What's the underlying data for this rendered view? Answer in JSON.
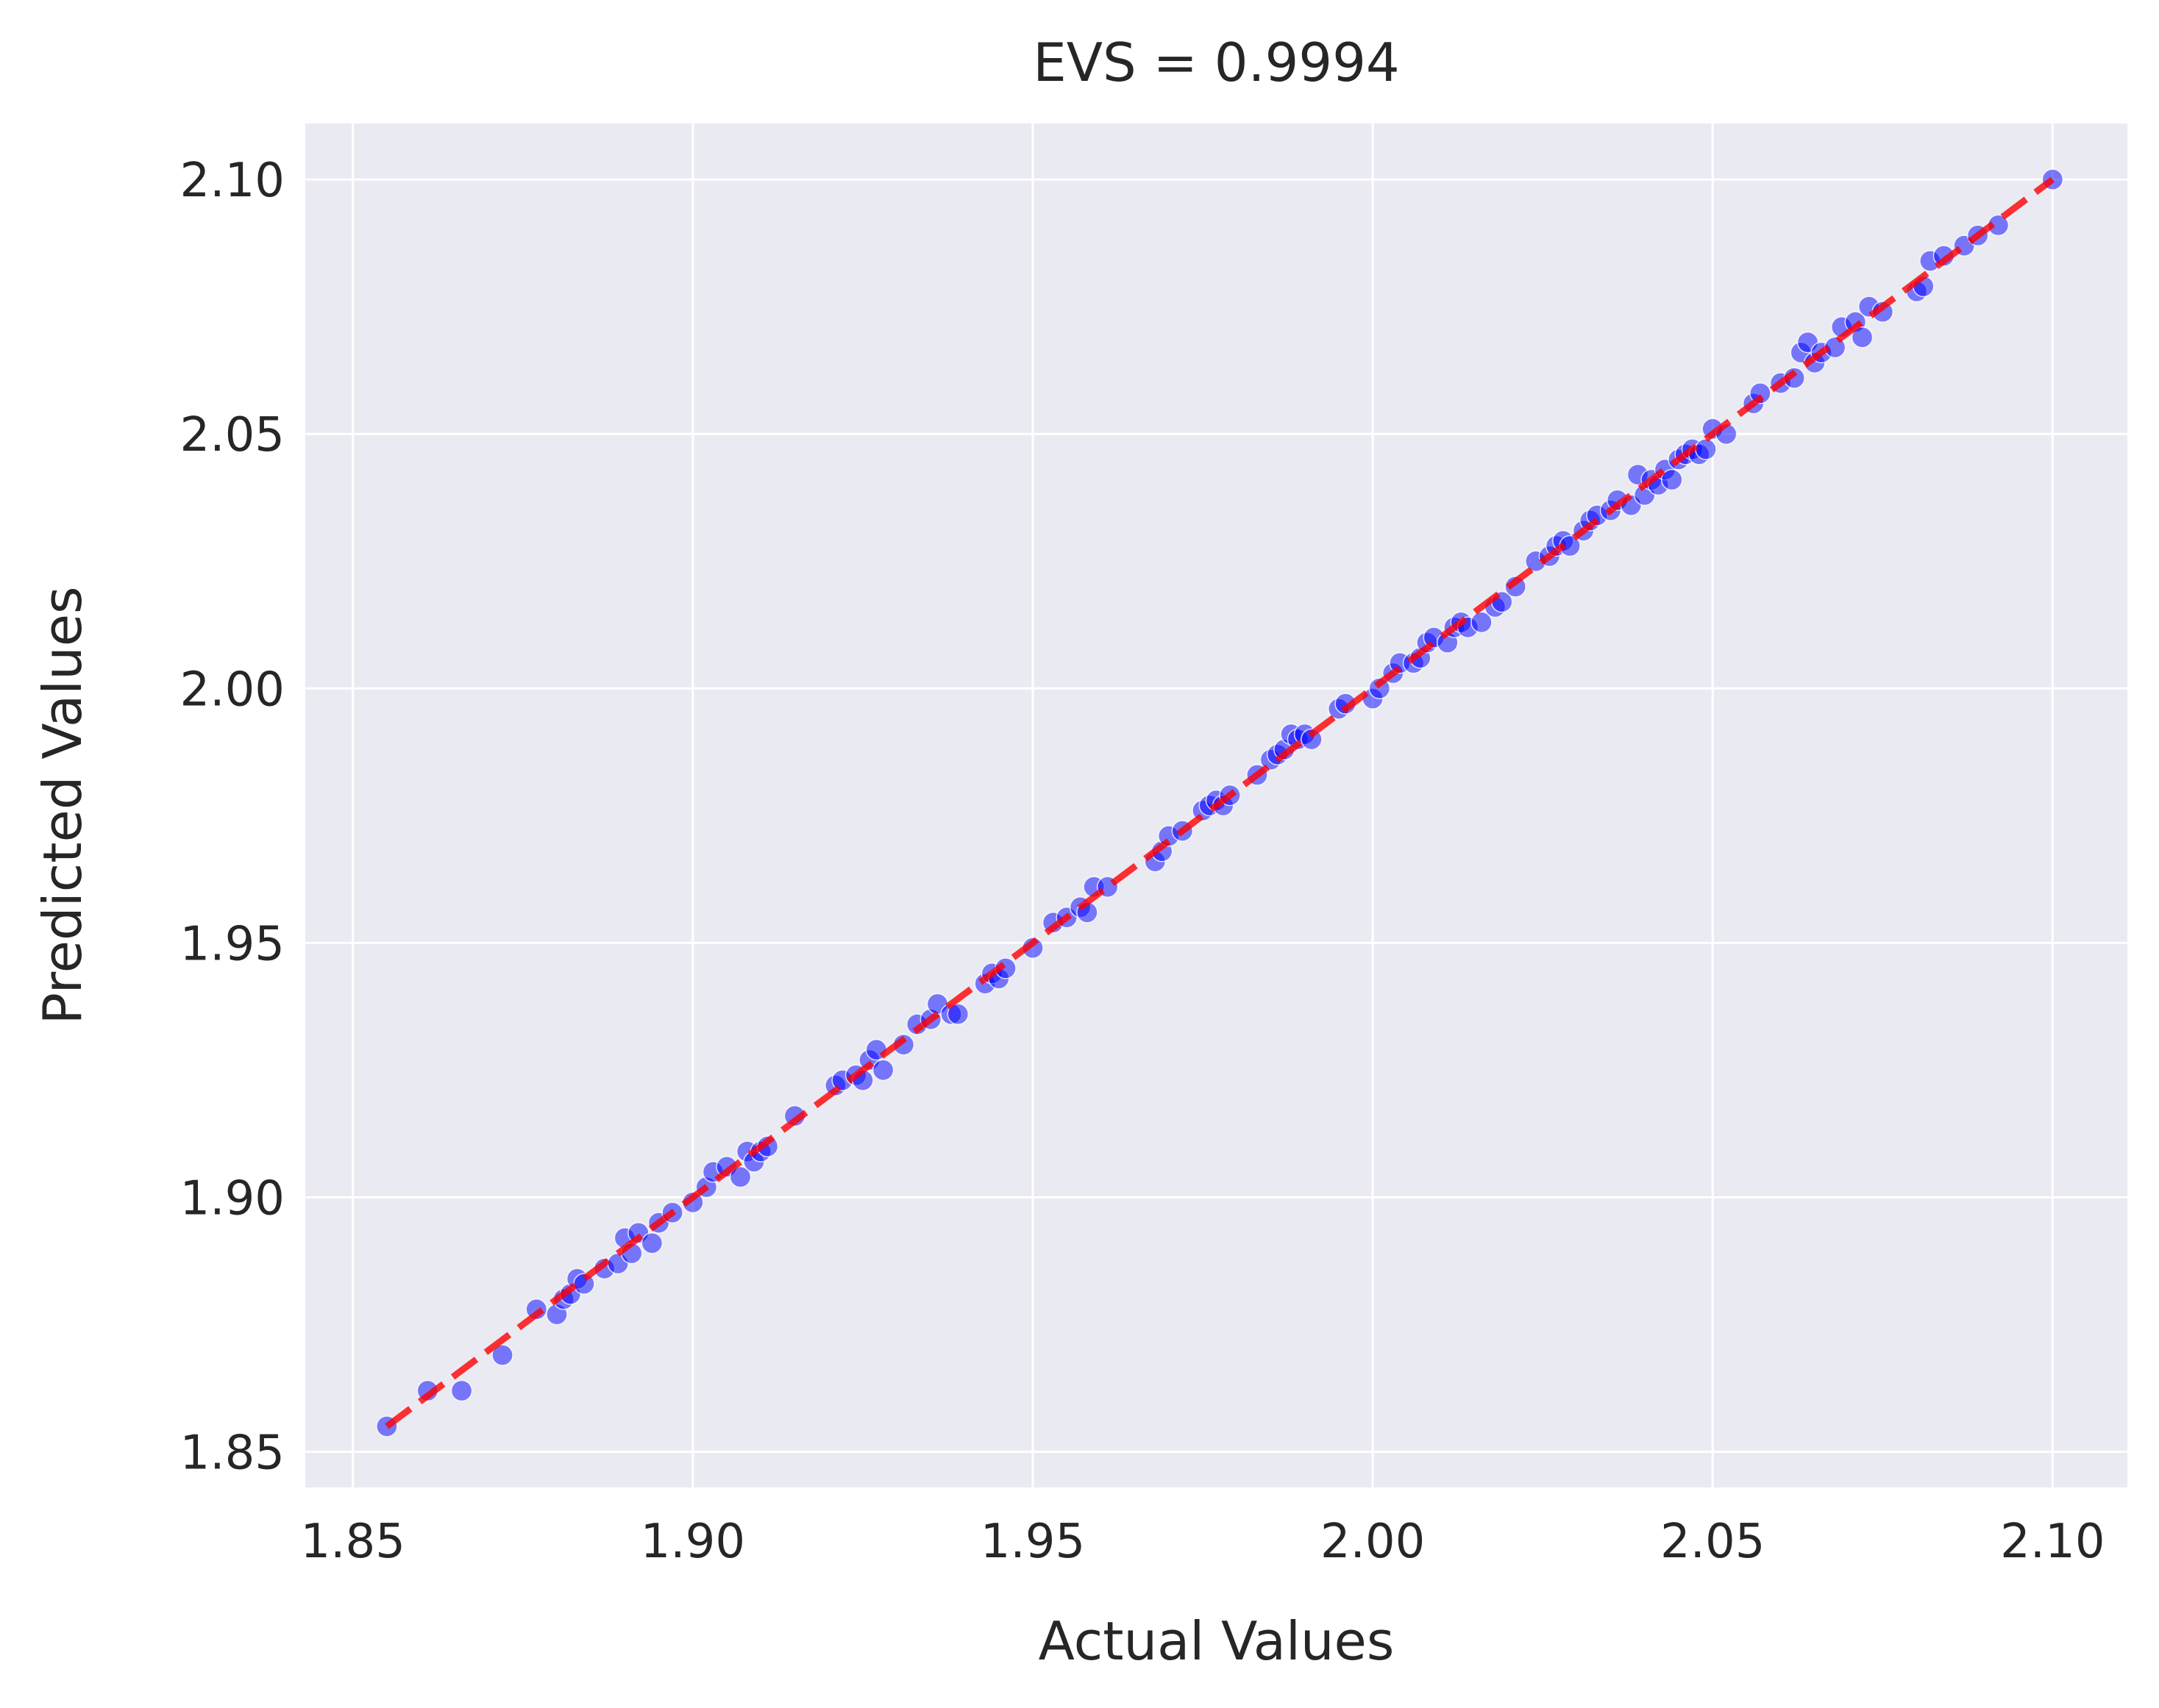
{
  "chart_data": {
    "type": "scatter",
    "title": "EVS = 0.9994",
    "xlabel": "Actual Values",
    "ylabel": "Predicted Values",
    "xlim": [
      1.843,
      2.111
    ],
    "ylim": [
      1.843,
      2.111
    ],
    "xticks": [
      "1.85",
      "1.90",
      "1.95",
      "2.00",
      "2.05",
      "2.10"
    ],
    "yticks": [
      "1.85",
      "1.90",
      "1.95",
      "2.00",
      "2.05",
      "2.10"
    ],
    "grid": true,
    "legend": "none",
    "colors": {
      "background": "#eaeaf2",
      "points": "#0000ff",
      "reference_line": "#ff0000",
      "grid": "#ffffff"
    },
    "reference_line": {
      "from": [
        1.855,
        1.855
      ],
      "to": [
        2.1,
        2.1
      ],
      "style": "dashed"
    },
    "points": [
      [
        1.855,
        1.855
      ],
      [
        1.861,
        1.862
      ],
      [
        1.866,
        1.862
      ],
      [
        1.872,
        1.869
      ],
      [
        1.877,
        1.878
      ],
      [
        1.88,
        1.877
      ],
      [
        1.881,
        1.88
      ],
      [
        1.882,
        1.881
      ],
      [
        1.883,
        1.884
      ],
      [
        1.884,
        1.883
      ],
      [
        1.887,
        1.886
      ],
      [
        1.889,
        1.887
      ],
      [
        1.89,
        1.892
      ],
      [
        1.891,
        1.889
      ],
      [
        1.892,
        1.893
      ],
      [
        1.894,
        1.891
      ],
      [
        1.895,
        1.895
      ],
      [
        1.897,
        1.897
      ],
      [
        1.9,
        1.899
      ],
      [
        1.902,
        1.902
      ],
      [
        1.903,
        1.905
      ],
      [
        1.905,
        1.906
      ],
      [
        1.907,
        1.904
      ],
      [
        1.908,
        1.909
      ],
      [
        1.909,
        1.907
      ],
      [
        1.91,
        1.909
      ],
      [
        1.911,
        1.91
      ],
      [
        1.915,
        1.916
      ],
      [
        1.921,
        1.922
      ],
      [
        1.922,
        1.923
      ],
      [
        1.924,
        1.924
      ],
      [
        1.925,
        1.923
      ],
      [
        1.926,
        1.927
      ],
      [
        1.927,
        1.929
      ],
      [
        1.928,
        1.925
      ],
      [
        1.931,
        1.93
      ],
      [
        1.933,
        1.934
      ],
      [
        1.935,
        1.935
      ],
      [
        1.936,
        1.938
      ],
      [
        1.938,
        1.936
      ],
      [
        1.939,
        1.936
      ],
      [
        1.943,
        1.942
      ],
      [
        1.944,
        1.944
      ],
      [
        1.945,
        1.943
      ],
      [
        1.946,
        1.945
      ],
      [
        1.95,
        1.949
      ],
      [
        1.953,
        1.954
      ],
      [
        1.955,
        1.955
      ],
      [
        1.957,
        1.957
      ],
      [
        1.958,
        1.956
      ],
      [
        1.959,
        1.961
      ],
      [
        1.961,
        1.961
      ],
      [
        1.968,
        1.966
      ],
      [
        1.969,
        1.968
      ],
      [
        1.97,
        1.971
      ],
      [
        1.972,
        1.972
      ],
      [
        1.975,
        1.976
      ],
      [
        1.976,
        1.977
      ],
      [
        1.977,
        1.978
      ],
      [
        1.978,
        1.977
      ],
      [
        1.979,
        1.979
      ],
      [
        1.983,
        1.983
      ],
      [
        1.985,
        1.986
      ],
      [
        1.986,
        1.987
      ],
      [
        1.987,
        1.988
      ],
      [
        1.988,
        1.991
      ],
      [
        1.989,
        1.99
      ],
      [
        1.99,
        1.991
      ],
      [
        1.991,
        1.99
      ],
      [
        1.995,
        1.996
      ],
      [
        1.996,
        1.997
      ],
      [
        2.0,
        1.998
      ],
      [
        2.001,
        2.0
      ],
      [
        2.003,
        2.003
      ],
      [
        2.004,
        2.005
      ],
      [
        2.006,
        2.005
      ],
      [
        2.007,
        2.006
      ],
      [
        2.008,
        2.009
      ],
      [
        2.009,
        2.01
      ],
      [
        2.011,
        2.009
      ],
      [
        2.012,
        2.012
      ],
      [
        2.013,
        2.013
      ],
      [
        2.014,
        2.012
      ],
      [
        2.016,
        2.013
      ],
      [
        2.018,
        2.016
      ],
      [
        2.019,
        2.017
      ],
      [
        2.021,
        2.02
      ],
      [
        2.024,
        2.025
      ],
      [
        2.026,
        2.026
      ],
      [
        2.027,
        2.028
      ],
      [
        2.028,
        2.029
      ],
      [
        2.029,
        2.028
      ],
      [
        2.031,
        2.031
      ],
      [
        2.032,
        2.033
      ],
      [
        2.033,
        2.034
      ],
      [
        2.035,
        2.035
      ],
      [
        2.036,
        2.037
      ],
      [
        2.038,
        2.036
      ],
      [
        2.039,
        2.042
      ],
      [
        2.04,
        2.038
      ],
      [
        2.041,
        2.041
      ],
      [
        2.042,
        2.04
      ],
      [
        2.043,
        2.043
      ],
      [
        2.044,
        2.041
      ],
      [
        2.045,
        2.045
      ],
      [
        2.046,
        2.046
      ],
      [
        2.047,
        2.047
      ],
      [
        2.048,
        2.046
      ],
      [
        2.049,
        2.047
      ],
      [
        2.05,
        2.051
      ],
      [
        2.052,
        2.05
      ],
      [
        2.056,
        2.056
      ],
      [
        2.057,
        2.058
      ],
      [
        2.06,
        2.06
      ],
      [
        2.062,
        2.061
      ],
      [
        2.063,
        2.066
      ],
      [
        2.064,
        2.068
      ],
      [
        2.065,
        2.064
      ],
      [
        2.066,
        2.066
      ],
      [
        2.068,
        2.067
      ],
      [
        2.069,
        2.071
      ],
      [
        2.071,
        2.072
      ],
      [
        2.072,
        2.069
      ],
      [
        2.073,
        2.075
      ],
      [
        2.075,
        2.074
      ],
      [
        2.08,
        2.078
      ],
      [
        2.081,
        2.079
      ],
      [
        2.082,
        2.084
      ],
      [
        2.084,
        2.085
      ],
      [
        2.087,
        2.087
      ],
      [
        2.089,
        2.089
      ],
      [
        2.092,
        2.091
      ],
      [
        2.1,
        2.1
      ]
    ]
  }
}
